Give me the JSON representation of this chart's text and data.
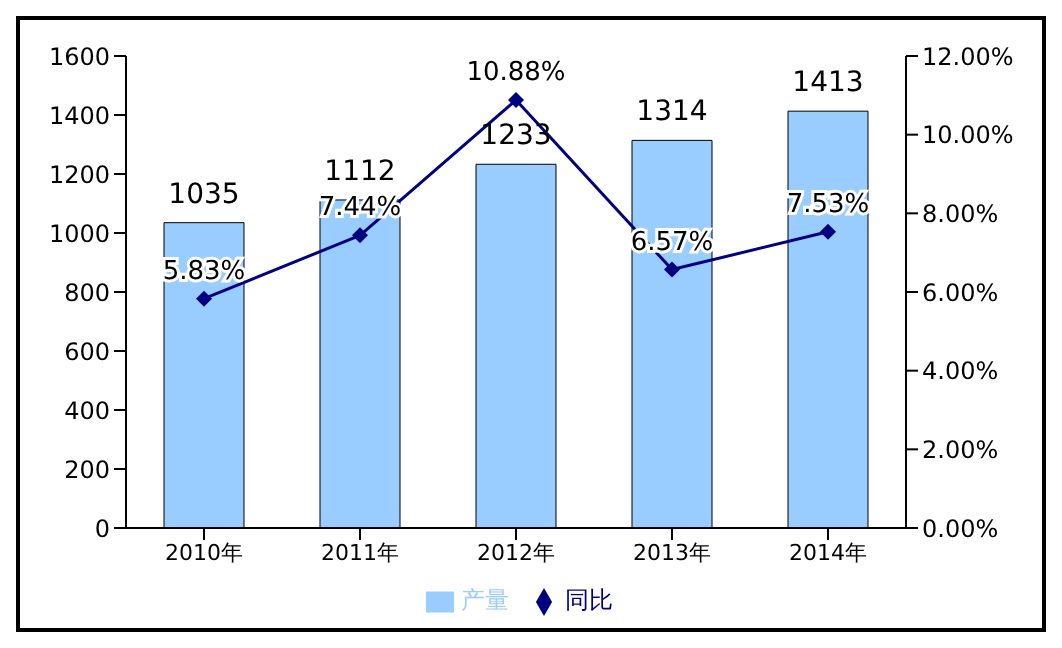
{
  "chart_data": {
    "type": "bar",
    "categories": [
      "2010年",
      "2011年",
      "2012年",
      "2013年",
      "2014年"
    ],
    "series": [
      {
        "name": "产量",
        "color": "#99ccff",
        "values": [
          1035,
          1112,
          1233,
          1314,
          1413
        ],
        "value_labels": [
          "1035",
          "1112",
          "1233",
          "1314",
          "1413"
        ]
      },
      {
        "name": "同比",
        "type": "line",
        "axis": "y2",
        "color": "#000080",
        "values": [
          5.83,
          7.44,
          10.88,
          6.57,
          7.53
        ],
        "value_labels": [
          "5.83%",
          "7.44%",
          "10.88%",
          "6.57%",
          "7.53%"
        ]
      }
    ],
    "ylim": [
      0,
      1600
    ],
    "yticks": [
      0,
      200,
      400,
      600,
      800,
      1000,
      1200,
      1400,
      1600
    ],
    "y2lim": [
      0,
      12
    ],
    "y2ticks": [
      {
        "value": 0,
        "label": "0.00%"
      },
      {
        "value": 2,
        "label": "2.00%"
      },
      {
        "value": 4,
        "label": "4.00%"
      },
      {
        "value": 6,
        "label": "6.00%"
      },
      {
        "value": 8,
        "label": "8.00%"
      },
      {
        "value": 10,
        "label": "10.00%"
      },
      {
        "value": 12,
        "label": "12.00%"
      }
    ],
    "legend": "bottom",
    "marker": "diamond",
    "grid": false
  }
}
